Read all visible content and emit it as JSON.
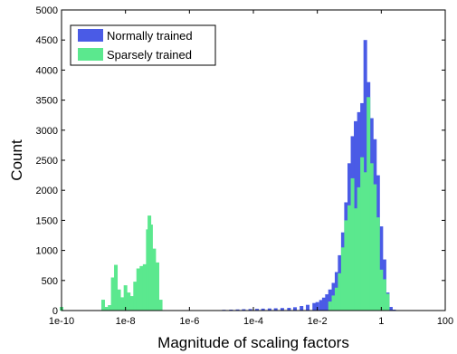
{
  "chart_data": {
    "type": "bar",
    "xlabel": "Magnitude of scaling factors",
    "ylabel": "Count",
    "x_scale": "log",
    "xlim": [
      1e-10,
      100
    ],
    "ylim": [
      0,
      5000
    ],
    "x_ticks": [
      {
        "value": 1e-10,
        "label": "1e-10"
      },
      {
        "value": 1e-08,
        "label": "1e-8"
      },
      {
        "value": 1e-06,
        "label": "1e-6"
      },
      {
        "value": 0.0001,
        "label": "1e-4"
      },
      {
        "value": 0.01,
        "label": "1e-2"
      },
      {
        "value": 1,
        "label": "1"
      },
      {
        "value": 100,
        "label": "100"
      }
    ],
    "y_ticks": [
      0,
      500,
      1000,
      1500,
      2000,
      2500,
      3000,
      3500,
      4000,
      4500,
      5000
    ],
    "grid": false,
    "legend_position": "top-left",
    "series": [
      {
        "name": "Normally trained",
        "color": "#4a5be6",
        "bins": [
          [
            1.2e-05,
            12
          ],
          [
            2e-05,
            15
          ],
          [
            3.2e-05,
            18
          ],
          [
            5e-05,
            22
          ],
          [
            8e-05,
            25
          ],
          [
            0.00013,
            28
          ],
          [
            0.0002,
            32
          ],
          [
            0.00032,
            35
          ],
          [
            0.0005,
            38
          ],
          [
            0.0008,
            42
          ],
          [
            0.0013,
            45
          ],
          [
            0.002,
            55
          ],
          [
            0.0032,
            75
          ],
          [
            0.005,
            95
          ],
          [
            0.008,
            125
          ],
          [
            0.01,
            140
          ],
          [
            0.013,
            175
          ],
          [
            0.016,
            215
          ],
          [
            0.02,
            270
          ],
          [
            0.025,
            350
          ],
          [
            0.032,
            460
          ],
          [
            0.04,
            640
          ],
          [
            0.05,
            920
          ],
          [
            0.063,
            1300
          ],
          [
            0.079,
            1800
          ],
          [
            0.1,
            2450
          ],
          [
            0.126,
            2900
          ],
          [
            0.158,
            3150
          ],
          [
            0.2,
            3300
          ],
          [
            0.251,
            3450
          ],
          [
            0.316,
            4500
          ],
          [
            0.398,
            3800
          ],
          [
            0.501,
            3200
          ],
          [
            0.631,
            2850
          ],
          [
            0.794,
            2250
          ],
          [
            1.0,
            1400
          ],
          [
            1.259,
            850
          ],
          [
            1.585,
            300
          ],
          [
            1.995,
            60
          ],
          [
            2.512,
            15
          ]
        ]
      },
      {
        "name": "Sparsely trained",
        "color": "#5be88e",
        "bins": [
          [
            1e-10,
            60
          ],
          [
            2e-09,
            180
          ],
          [
            2.5e-09,
            60
          ],
          [
            3.2e-09,
            90
          ],
          [
            4e-09,
            550
          ],
          [
            5e-09,
            760
          ],
          [
            6.3e-09,
            350
          ],
          [
            7.9e-09,
            220
          ],
          [
            1e-08,
            420
          ],
          [
            1.26e-08,
            300
          ],
          [
            1.58e-08,
            240
          ],
          [
            2e-08,
            480
          ],
          [
            2.5e-08,
            700
          ],
          [
            3.16e-08,
            740
          ],
          [
            3.98e-08,
            770
          ],
          [
            5e-08,
            1350
          ],
          [
            5.6e-08,
            1580
          ],
          [
            6.3e-08,
            1430
          ],
          [
            7.9e-08,
            1030
          ],
          [
            1e-07,
            800
          ],
          [
            1.26e-07,
            180
          ],
          [
            0.025,
            150
          ],
          [
            0.032,
            250
          ],
          [
            0.04,
            380
          ],
          [
            0.05,
            620
          ],
          [
            0.063,
            1050
          ],
          [
            0.079,
            1500
          ],
          [
            0.1,
            1750
          ],
          [
            0.126,
            2200
          ],
          [
            0.158,
            1700
          ],
          [
            0.2,
            2050
          ],
          [
            0.251,
            2550
          ],
          [
            0.316,
            2300
          ],
          [
            0.398,
            3550
          ],
          [
            0.501,
            2450
          ],
          [
            0.631,
            2100
          ],
          [
            0.794,
            1550
          ],
          [
            1.0,
            680
          ],
          [
            1.259,
            520
          ],
          [
            1.585,
            280
          ]
        ]
      }
    ]
  }
}
